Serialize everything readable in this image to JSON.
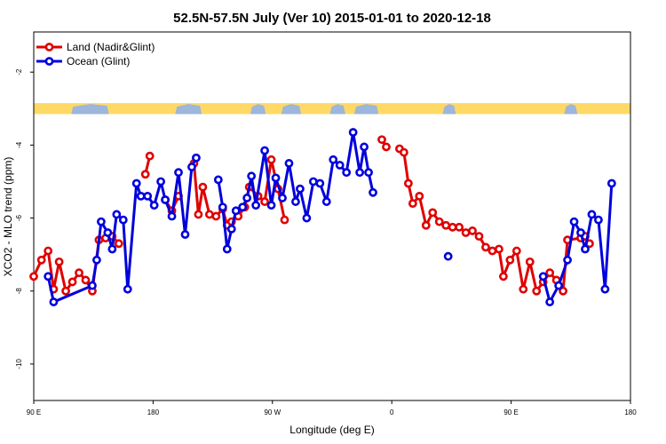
{
  "chart_data": {
    "type": "line",
    "title": "52.5N-57.5N July (Ver 10)   2015-01-01 to 2020-12-18",
    "xlabel": "Longitude (deg E)",
    "ylabel": "XCO2 - MLO trend (ppm)",
    "xlim": [
      -90,
      180
    ],
    "ylim": [
      -11,
      -0.9
    ],
    "x_ticks": [
      {
        "value": -90,
        "label": "90 E"
      },
      {
        "value": -36,
        "label": "180"
      },
      {
        "value": 18,
        "label": "90 W"
      },
      {
        "value": 72,
        "label": "0"
      },
      {
        "value": 126,
        "label": "90 E"
      },
      {
        "value": 180,
        "label": "180"
      }
    ],
    "y_ticks": [
      {
        "value": -2,
        "label": "-2"
      },
      {
        "value": -4,
        "label": "-4"
      },
      {
        "value": -6,
        "label": "-6"
      },
      {
        "value": -8,
        "label": "-8"
      },
      {
        "value": -10,
        "label": "-10"
      }
    ],
    "map_strip": {
      "y_range": [
        -3.15,
        -2.85
      ],
      "land_color": "#ffd966",
      "ocean_color": "#9db6db"
    },
    "series": [
      {
        "name": "Land (Nadir&Glint)",
        "color": "#e00000",
        "points": [
          [
            -90,
            -7.6
          ],
          [
            -86.5,
            -7.15
          ],
          [
            -83.5,
            -6.9
          ],
          [
            -81,
            -7.95
          ],
          [
            -78.5,
            -7.2
          ],
          [
            -75.5,
            -8.0
          ],
          [
            -72.5,
            -7.75
          ],
          [
            -69.5,
            -7.5
          ],
          [
            -66.5,
            -7.7
          ],
          [
            -63.5,
            -8.0
          ],
          [
            -60.5,
            -6.6
          ],
          [
            -57.5,
            -6.55
          ],
          [
            -54.5,
            -6.5
          ],
          [
            -51.5,
            -6.7
          ],
          null,
          [
            -39.5,
            -4.8
          ],
          [
            -37.5,
            -4.3
          ],
          null,
          [
            -30.5,
            -5.5
          ],
          [
            -27.5,
            -5.8
          ],
          [
            -24.5,
            -5.4
          ],
          null,
          [
            -17.5,
            -4.5
          ],
          [
            -15.5,
            -5.9
          ],
          [
            -13.5,
            -5.15
          ],
          [
            -10.5,
            -5.9
          ],
          [
            -7.5,
            -5.95
          ],
          [
            -4.5,
            -5.75
          ],
          [
            -2.5,
            -6.2
          ],
          [
            -0.5,
            -6.1
          ],
          [
            2.5,
            -5.95
          ],
          [
            5.5,
            -5.7
          ],
          [
            7.5,
            -5.15
          ],
          [
            11.5,
            -5.4
          ],
          [
            14.5,
            -5.55
          ],
          [
            17.5,
            -4.4
          ],
          [
            20.5,
            -5.2
          ],
          [
            23.5,
            -6.05
          ],
          null,
          [
            67.5,
            -3.85
          ],
          [
            69.5,
            -4.05
          ],
          null,
          [
            75.5,
            -4.1
          ],
          [
            77.5,
            -4.2
          ],
          [
            79.5,
            -5.05
          ],
          [
            81.5,
            -5.6
          ],
          [
            84.5,
            -5.4
          ],
          [
            87.5,
            -6.2
          ],
          [
            90.5,
            -5.85
          ],
          [
            93.5,
            -6.1
          ],
          [
            96.5,
            -6.2
          ],
          [
            99.5,
            -6.25
          ],
          [
            102.5,
            -6.25
          ],
          [
            105.5,
            -6.4
          ],
          [
            108.5,
            -6.35
          ],
          [
            111.5,
            -6.5
          ],
          [
            114.5,
            -6.8
          ],
          [
            117.5,
            -6.9
          ],
          [
            120.5,
            -6.85
          ],
          [
            122.5,
            -7.6
          ],
          [
            125.5,
            -7.15
          ],
          [
            128.5,
            -6.9
          ],
          [
            131.5,
            -7.95
          ],
          [
            134.5,
            -7.2
          ],
          [
            137.5,
            -8.0
          ],
          [
            140.5,
            -7.75
          ],
          [
            143.5,
            -7.5
          ],
          [
            146.5,
            -7.7
          ],
          [
            149.5,
            -8.0
          ],
          [
            151.5,
            -6.6
          ],
          [
            157.5,
            -6.55
          ],
          [
            159.5,
            -6.5
          ],
          [
            161.5,
            -6.7
          ]
        ]
      },
      {
        "name": "Ocean (Glint)",
        "color": "#0000dd",
        "points": [
          [
            -83.5,
            -7.6
          ],
          [
            -81,
            -8.3
          ],
          [
            -63.5,
            -7.85
          ],
          [
            -61.5,
            -7.15
          ],
          [
            -59.5,
            -6.1
          ],
          [
            -56.5,
            -6.4
          ],
          [
            -54.5,
            -6.85
          ],
          [
            -52.5,
            -5.9
          ],
          [
            -49.5,
            -6.05
          ],
          [
            -47.5,
            -7.95
          ],
          [
            -43.5,
            -5.05
          ],
          [
            -41.5,
            -5.4
          ],
          [
            -38.5,
            -5.4
          ],
          [
            -35.5,
            -5.65
          ],
          [
            -32.5,
            -5.0
          ],
          [
            -30.5,
            -5.5
          ],
          [
            -27.5,
            -5.95
          ],
          [
            -24.5,
            -4.75
          ],
          [
            -21.5,
            -6.45
          ],
          [
            -18.5,
            -4.6
          ],
          [
            -16.5,
            -4.35
          ],
          null,
          [
            -6.5,
            -4.95
          ],
          [
            -4.5,
            -5.7
          ],
          [
            -2.5,
            -6.85
          ],
          [
            -0.5,
            -6.3
          ],
          [
            1.5,
            -5.8
          ],
          [
            4.5,
            -5.7
          ],
          [
            6.5,
            -5.45
          ],
          [
            8.5,
            -4.85
          ],
          [
            10.5,
            -5.65
          ],
          [
            14.5,
            -4.15
          ],
          [
            17.5,
            -5.65
          ],
          [
            19.5,
            -4.9
          ],
          [
            22.5,
            -5.45
          ],
          [
            25.5,
            -4.5
          ],
          [
            28.5,
            -5.55
          ],
          [
            30.5,
            -5.2
          ],
          [
            33.5,
            -6.0
          ],
          [
            36.5,
            -5.0
          ],
          [
            39.5,
            -5.05
          ],
          [
            42.5,
            -5.55
          ],
          [
            45.5,
            -4.4
          ],
          [
            48.5,
            -4.55
          ],
          [
            51.5,
            -4.75
          ],
          [
            54.5,
            -3.65
          ],
          [
            57.5,
            -4.75
          ],
          [
            59.5,
            -4.05
          ],
          [
            61.5,
            -4.75
          ],
          [
            63.5,
            -5.3
          ],
          null,
          [
            97.5,
            -7.05
          ],
          null,
          [
            140.5,
            -7.6
          ],
          [
            143.5,
            -8.3
          ],
          [
            147.5,
            -7.85
          ],
          [
            151.5,
            -7.15
          ],
          [
            154.5,
            -6.1
          ],
          [
            157.5,
            -6.4
          ],
          [
            159.5,
            -6.85
          ],
          [
            162.5,
            -5.9
          ],
          [
            165.5,
            -6.05
          ],
          [
            168.5,
            -7.95
          ],
          [
            171.5,
            -5.05
          ]
        ]
      }
    ],
    "legend": {
      "position": "top-left",
      "entries": [
        "Land (Nadir&Glint)",
        "Ocean (Glint)"
      ]
    }
  }
}
